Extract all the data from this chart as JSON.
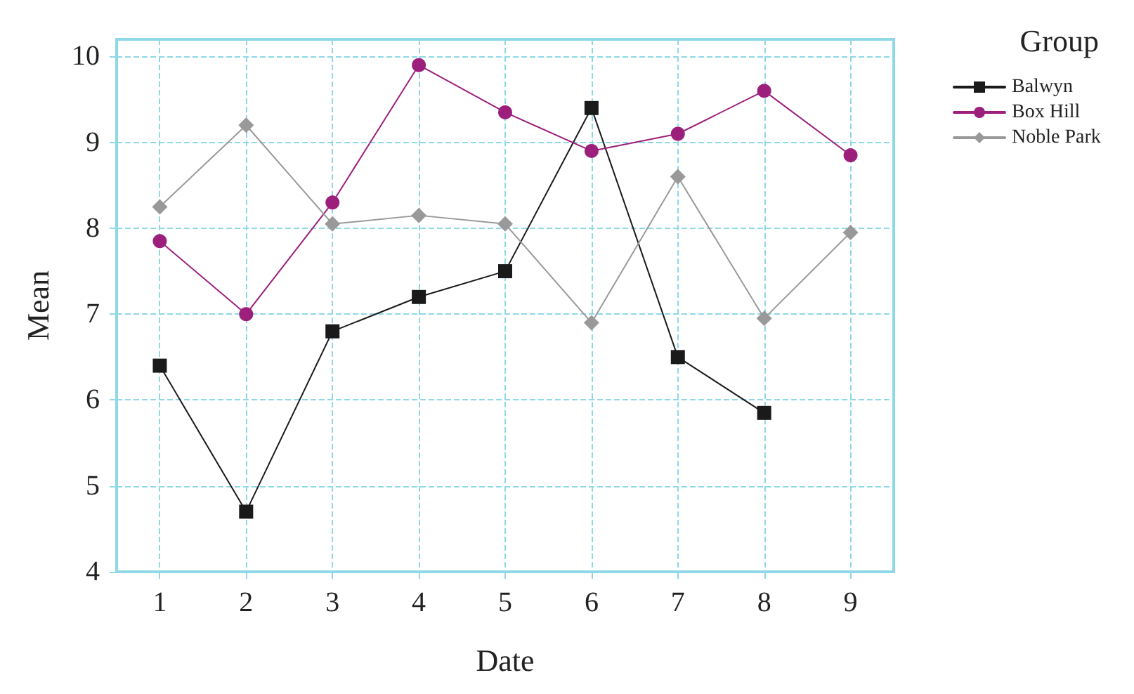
{
  "chart_data": {
    "type": "line",
    "xlabel": "Date",
    "ylabel": "Mean",
    "legend_title": "Group",
    "x": [
      1,
      2,
      3,
      4,
      5,
      6,
      7,
      8,
      9
    ],
    "xlim": [
      0.5,
      9.5
    ],
    "xticks": [
      1,
      2,
      3,
      4,
      5,
      6,
      7,
      8,
      9
    ],
    "ylim": [
      4,
      10.2
    ],
    "yticks": [
      4,
      5,
      6,
      7,
      8,
      9,
      10
    ],
    "grid": true,
    "legend": "top right",
    "line_style": "solid",
    "series": [
      {
        "name": "Balwyn",
        "color": "#1a1a1a",
        "marker": "square",
        "values": [
          6.4,
          4.7,
          6.8,
          7.2,
          7.5,
          9.4,
          6.5,
          5.85,
          null
        ]
      },
      {
        "name": "Box Hill",
        "color": "#9c1f7c",
        "marker": "circle",
        "values": [
          7.85,
          7.0,
          8.3,
          9.9,
          9.35,
          8.9,
          9.1,
          9.6,
          8.85
        ]
      },
      {
        "name": "Noble Park",
        "color": "#999999",
        "marker": "diamond",
        "values": [
          8.25,
          9.2,
          8.05,
          8.15,
          8.05,
          6.9,
          8.6,
          6.95,
          7.95
        ]
      }
    ]
  }
}
